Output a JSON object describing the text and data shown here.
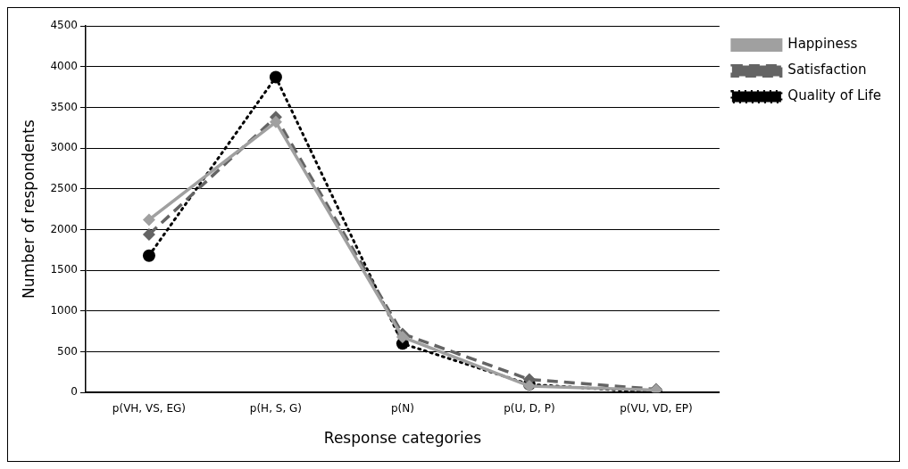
{
  "chart_data": {
    "type": "line",
    "xlabel": "Response categories",
    "ylabel": "Number of respondents",
    "categories": [
      "p(VH, VS, EG)",
      "p(H, S, G)",
      "p(N)",
      "p(U, D, P)",
      "p(VU, VD, EP)"
    ],
    "series": [
      {
        "name": "Happiness",
        "color": "#a0a0a0",
        "values": [
          2120,
          3320,
          680,
          80,
          30
        ],
        "marker": "diamond",
        "line_style": "solid"
      },
      {
        "name": "Satisfaction",
        "color": "#646464",
        "values": [
          1940,
          3380,
          720,
          160,
          40
        ],
        "marker": "diamond",
        "line_style": "dashed"
      },
      {
        "name": "Quality of Life",
        "color": "#000000",
        "values": [
          1680,
          3870,
          600,
          100,
          0
        ],
        "marker": "circle",
        "line_style": "dotted"
      }
    ],
    "ylim": [
      0,
      4500
    ],
    "yticks": [
      0,
      500,
      1000,
      1500,
      2000,
      2500,
      3000,
      3500,
      4000,
      4500
    ],
    "grid": "y",
    "legend": "top right"
  }
}
